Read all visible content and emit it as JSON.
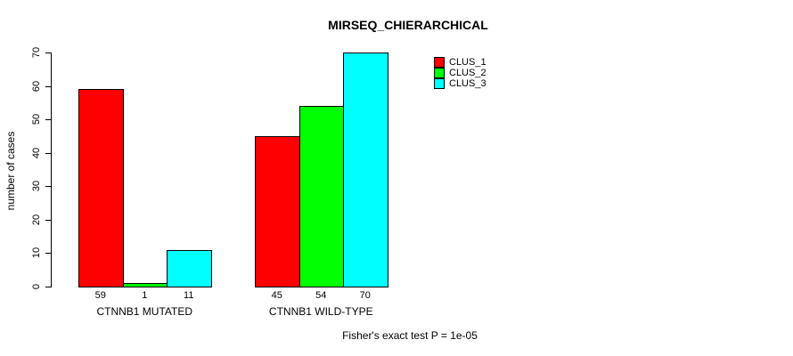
{
  "chart_data": {
    "type": "bar",
    "title": "MIRSEQ_CHIERARCHICAL",
    "ylabel": "number of cases",
    "xlabel": "",
    "ylim": [
      0,
      70
    ],
    "yticks": [
      0,
      10,
      20,
      30,
      40,
      50,
      60,
      70
    ],
    "categories": [
      "CTNNB1 MUTATED",
      "CTNNB1 WILD-TYPE"
    ],
    "series": [
      {
        "name": "CLUS_1",
        "color": "#ff0000",
        "values": [
          59,
          45
        ]
      },
      {
        "name": "CLUS_2",
        "color": "#00ff00",
        "values": [
          1,
          54
        ]
      },
      {
        "name": "CLUS_3",
        "color": "#00ffff",
        "values": [
          11,
          70
        ]
      }
    ],
    "show_bar_values": true,
    "grid": false,
    "bar_border_color": "#000000",
    "legend_position": "top-right",
    "annotation": "Fisher's exact test P = 1e-05"
  }
}
